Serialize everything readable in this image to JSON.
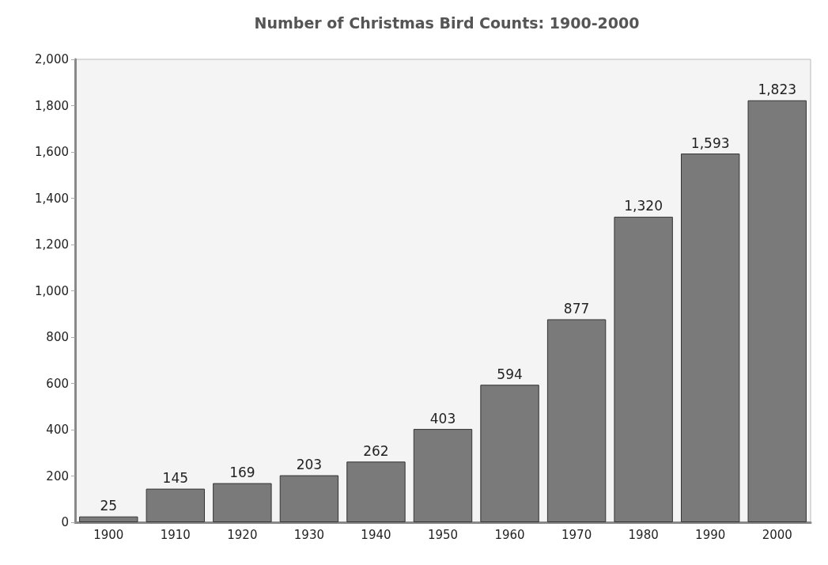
{
  "chart_data": {
    "type": "bar",
    "title": "Number of Christmas Bird Counts: 1900-2000",
    "categories": [
      "1900",
      "1910",
      "1920",
      "1930",
      "1940",
      "1950",
      "1960",
      "1970",
      "1980",
      "1990",
      "2000"
    ],
    "values": [
      25,
      145,
      169,
      203,
      262,
      403,
      594,
      877,
      1320,
      1593,
      1823
    ],
    "value_labels": [
      "25",
      "145",
      "169",
      "203",
      "262",
      "403",
      "594",
      "877",
      "1,320",
      "1,593",
      "1,823"
    ],
    "color": "#7a7a7a",
    "ylim": [
      0,
      2000
    ],
    "yticks": [
      0,
      200,
      400,
      600,
      800,
      {
        "value": 1000,
        "label": "1,000"
      },
      {
        "value": 1200,
        "label": "1,200"
      },
      {
        "value": 1400,
        "label": "1,400"
      },
      {
        "value": 1600,
        "label": "1,600"
      },
      {
        "value": 1800,
        "label": "1,800"
      },
      {
        "value": 2000,
        "label": "2,000"
      }
    ],
    "grid": false
  }
}
